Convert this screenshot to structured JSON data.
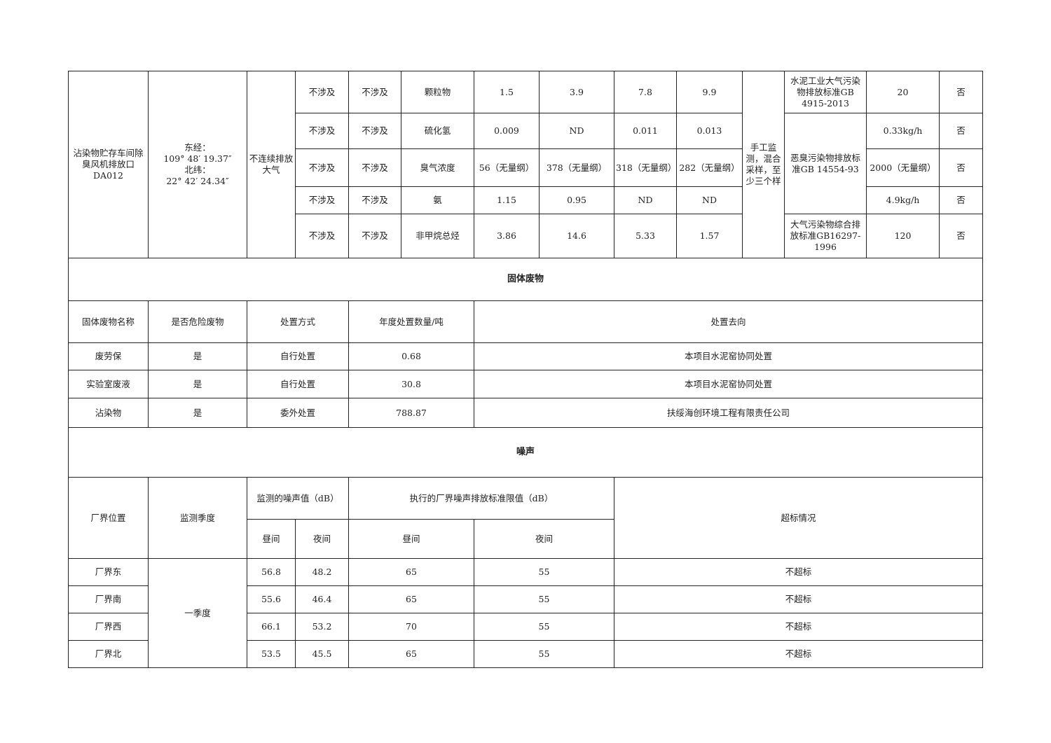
{
  "air": {
    "outlet": "沾染物贮存车间除臭风机排放口DA012",
    "coords": "东经：\n109° 48′ 19.37″\n北纬：\n22° 42′ 24.34″",
    "discharge": "不连续排放大气",
    "method": "手工监测，混合采样，至少三个样",
    "rows": [
      {
        "a": "不涉及",
        "b": "不涉及",
        "pollutant": "颗粒物",
        "v1": "1.5",
        "v2": "3.9",
        "v3": "7.8",
        "v4": "9.9",
        "limit": "20",
        "exceed": "否"
      },
      {
        "a": "不涉及",
        "b": "不涉及",
        "pollutant": "硫化氢",
        "v1": "0.009",
        "v2": "ND",
        "v3": "0.011",
        "v4": "0.013",
        "limit": "0.33kg/h",
        "exceed": "否"
      },
      {
        "a": "不涉及",
        "b": "不涉及",
        "pollutant": "臭气浓度",
        "v1": "56（无量纲）",
        "v2": "378（无量纲）",
        "v3": "318（无量纲）",
        "v4": "282（无量纲）",
        "limit": "2000（无量纲）",
        "exceed": "否"
      },
      {
        "a": "不涉及",
        "b": "不涉及",
        "pollutant": "氨",
        "v1": "1.15",
        "v2": "0.95",
        "v3": "ND",
        "v4": "ND",
        "limit": "4.9kg/h",
        "exceed": "否"
      },
      {
        "a": "不涉及",
        "b": "不涉及",
        "pollutant": "非甲烷总烃",
        "v1": "3.86",
        "v2": "14.6",
        "v3": "5.33",
        "v4": "1.57",
        "limit": "120",
        "exceed": "否"
      }
    ],
    "standards": [
      "水泥工业大气污染物排放标准GB 4915-2013",
      "恶臭污染物排放标准GB 14554-93",
      "大气污染物综合排放标准GB16297-1996"
    ]
  },
  "solid": {
    "title": "固体废物",
    "headers": [
      "固体废物名称",
      "是否危险废物",
      "处置方式",
      "年度处置数量/吨",
      "处置去向"
    ],
    "rows": [
      [
        "废劳保",
        "是",
        "自行处置",
        "0.68",
        "本项目水泥窑协同处置"
      ],
      [
        "实验室废液",
        "是",
        "自行处置",
        "30.8",
        "本项目水泥窑协同处置"
      ],
      [
        "沾染物",
        "是",
        "委外处置",
        "788.87",
        "扶绥海创环境工程有限责任公司"
      ]
    ]
  },
  "noise": {
    "title": "噪声",
    "h_location": "厂界位置",
    "h_season": "监测季度",
    "h_measured": "监测的噪声值（dB）",
    "h_standard": "执行的厂界噪声排放标准限值（dB）",
    "h_exceed": "超标情况",
    "h_day": "昼间",
    "h_night": "夜间",
    "h_std_day": "昼间",
    "h_std_night": "夜间",
    "season": "一季度",
    "rows": [
      [
        "厂界东",
        "56.8",
        "48.2",
        "65",
        "55",
        "不超标"
      ],
      [
        "厂界南",
        "55.6",
        "46.4",
        "65",
        "55",
        "不超标"
      ],
      [
        "厂界西",
        "66.1",
        "53.2",
        "70",
        "55",
        "不超标"
      ],
      [
        "厂界北",
        "53.5",
        "45.5",
        "65",
        "55",
        "不超标"
      ]
    ]
  }
}
